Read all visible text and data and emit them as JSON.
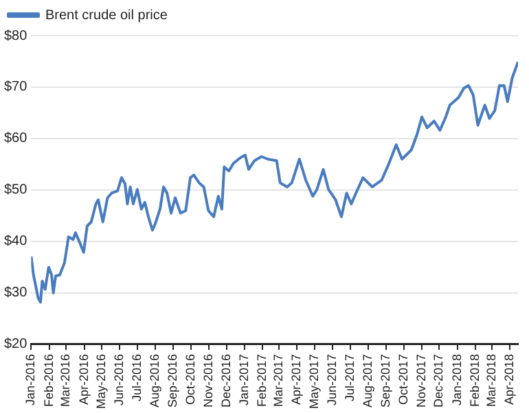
{
  "chart_data": {
    "type": "line",
    "legend": "top left",
    "grid": "y",
    "marker": "none",
    "line_style": "solid",
    "xlim": [
      "2016-01-01",
      "2018-04-15"
    ],
    "xticks": [
      {
        "value": "2016-01",
        "label": "Jan-2016"
      },
      {
        "value": "2016-02",
        "label": "Feb-2016"
      },
      {
        "value": "2016-03",
        "label": "Mar-2016"
      },
      {
        "value": "2016-04",
        "label": "Apr-2016"
      },
      {
        "value": "2016-05",
        "label": "May-2016"
      },
      {
        "value": "2016-06",
        "label": "Jun-2016"
      },
      {
        "value": "2016-07",
        "label": "Jul-2016"
      },
      {
        "value": "2016-08",
        "label": "Aug-2016"
      },
      {
        "value": "2016-09",
        "label": "Sep-2016"
      },
      {
        "value": "2016-10",
        "label": "Oct-2016"
      },
      {
        "value": "2016-11",
        "label": "Nov-2016"
      },
      {
        "value": "2016-12",
        "label": "Dec-2016"
      },
      {
        "value": "2017-01",
        "label": "Jan-2017"
      },
      {
        "value": "2017-02",
        "label": "Feb-2017"
      },
      {
        "value": "2017-03",
        "label": "Mar-2017"
      },
      {
        "value": "2017-04",
        "label": "Apr-2017"
      },
      {
        "value": "2017-05",
        "label": "May-2017"
      },
      {
        "value": "2017-06",
        "label": "Jun-2017"
      },
      {
        "value": "2017-07",
        "label": "Jul-2017"
      },
      {
        "value": "2017-08",
        "label": "Aug-2017"
      },
      {
        "value": "2017-09",
        "label": "Sep-2017"
      },
      {
        "value": "2017-10",
        "label": "Oct-2017"
      },
      {
        "value": "2017-11",
        "label": "Nov-2017"
      },
      {
        "value": "2017-12",
        "label": "Dec-2017"
      },
      {
        "value": "2018-01",
        "label": "Jan-2018"
      },
      {
        "value": "2018-02",
        "label": "Feb-2018"
      },
      {
        "value": "2018-03",
        "label": "Mar-2018"
      },
      {
        "value": "2018-04",
        "label": "Apr-2018"
      }
    ],
    "ylim": [
      20,
      80
    ],
    "yticks": [
      {
        "value": 20,
        "label": "$20"
      },
      {
        "value": 30,
        "label": "$30"
      },
      {
        "value": 40,
        "label": "$40"
      },
      {
        "value": 50,
        "label": "$50"
      },
      {
        "value": 60,
        "label": "$60"
      },
      {
        "value": 70,
        "label": "$70"
      },
      {
        "value": 80,
        "label": "$80"
      }
    ],
    "x": [
      "2016-01-01",
      "2016-01-05",
      "2016-01-13",
      "2016-01-17",
      "2016-01-20",
      "2016-01-25",
      "2016-01-31",
      "2016-02-05",
      "2016-02-08",
      "2016-02-12",
      "2016-02-19",
      "2016-02-27",
      "2016-03-01",
      "2016-03-05",
      "2016-03-13",
      "2016-03-17",
      "2016-03-25",
      "2016-03-31",
      "2016-04-06",
      "2016-04-13",
      "2016-04-21",
      "2016-04-25",
      "2016-05-03",
      "2016-05-11",
      "2016-05-18",
      "2016-05-28",
      "2016-06-04",
      "2016-06-10",
      "2016-06-14",
      "2016-06-19",
      "2016-06-24",
      "2016-07-01",
      "2016-07-08",
      "2016-07-14",
      "2016-07-20",
      "2016-07-27",
      "2016-08-01",
      "2016-08-09",
      "2016-08-15",
      "2016-08-21",
      "2016-08-28",
      "2016-09-04",
      "2016-09-13",
      "2016-09-22",
      "2016-09-30",
      "2016-10-06",
      "2016-10-15",
      "2016-10-23",
      "2016-10-31",
      "2016-11-09",
      "2016-11-17",
      "2016-11-23",
      "2016-11-27",
      "2016-12-05",
      "2016-12-13",
      "2016-12-25",
      "2017-01-02",
      "2017-01-08",
      "2017-01-18",
      "2017-01-30",
      "2017-02-10",
      "2017-02-25",
      "2017-03-03",
      "2017-03-15",
      "2017-03-23",
      "2017-04-05",
      "2017-04-16",
      "2017-04-28",
      "2017-05-05",
      "2017-05-16",
      "2017-05-25",
      "2017-06-06",
      "2017-06-16",
      "2017-06-25",
      "2017-07-03",
      "2017-07-11",
      "2017-07-23",
      "2017-08-08",
      "2017-08-24",
      "2017-09-05",
      "2017-09-18",
      "2017-09-28",
      "2017-10-14",
      "2017-10-24",
      "2017-11-01",
      "2017-11-10",
      "2017-11-22",
      "2017-12-02",
      "2017-12-12",
      "2017-12-19",
      "2018-01-03",
      "2018-01-12",
      "2018-01-20",
      "2018-01-28",
      "2018-02-05",
      "2018-02-17",
      "2018-02-25",
      "2018-03-06",
      "2018-03-14",
      "2018-03-22",
      "2018-03-28",
      "2018-04-05",
      "2018-04-15"
    ],
    "series": [
      {
        "name": "Brent crude oil price",
        "color": "#4a7cc0",
        "values": [
          37.1,
          33.5,
          29,
          28.2,
          32.3,
          30.7,
          35,
          33.5,
          30,
          33.3,
          33.5,
          35.8,
          37.9,
          40.9,
          40.4,
          41.7,
          39.6,
          37.9,
          43,
          43.8,
          47.3,
          48.1,
          43.8,
          48.5,
          49.4,
          49.8,
          52.4,
          51.2,
          47.3,
          50.6,
          47.3,
          50.1,
          46.3,
          47.6,
          44.8,
          42.2,
          43.5,
          46.3,
          50.6,
          49.4,
          45.5,
          48.5,
          45.5,
          46,
          52.4,
          52.9,
          51.4,
          50.6,
          46,
          44.8,
          48.8,
          46.3,
          54.5,
          53.7,
          55.2,
          56.3,
          56.8,
          54,
          55.7,
          56.5,
          56,
          55.7,
          51.4,
          50.6,
          51.4,
          56,
          51.9,
          48.8,
          50.1,
          54,
          50.1,
          48.1,
          44.8,
          49.4,
          47.3,
          49.4,
          52.4,
          50.6,
          51.9,
          55,
          58.8,
          56,
          57.8,
          60.9,
          64.2,
          62.1,
          63.4,
          61.6,
          64.2,
          66.5,
          68,
          69.8,
          70.3,
          68.5,
          62.6,
          66.5,
          63.9,
          65.4,
          70.3,
          70.3,
          67.2,
          71.8,
          74.9
        ]
      }
    ]
  }
}
